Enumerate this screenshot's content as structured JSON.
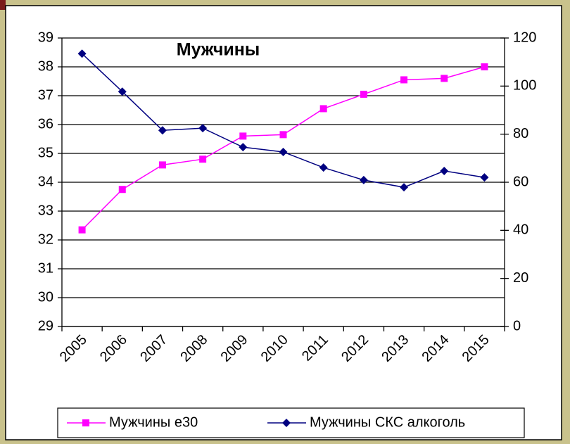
{
  "chart_data": {
    "type": "line",
    "title": "Мужчины",
    "categories": [
      "2005",
      "2006",
      "2007",
      "2008",
      "2009",
      "2010",
      "2011",
      "2012",
      "2013",
      "2014",
      "2015"
    ],
    "series": [
      {
        "name": "Мужчины е30",
        "color": "#ff00ff",
        "marker": "square",
        "values": [
          32.35,
          33.75,
          34.6,
          34.8,
          35.6,
          35.65,
          36.55,
          37.05,
          37.55,
          37.6,
          38.0
        ]
      },
      {
        "name": "Мужчины СКС алкоголь",
        "color": "#000080",
        "marker": "diamond",
        "axis": "y2",
        "values": [
          113.5,
          97.7,
          81.6,
          82.5,
          74.6,
          72.6,
          66.1,
          60.9,
          57.9,
          64.7,
          62.0
        ]
      }
    ],
    "ylim": [
      29,
      39
    ],
    "yticks": [
      29,
      30,
      31,
      32,
      33,
      34,
      35,
      36,
      37,
      38,
      39
    ],
    "y2lim": [
      0,
      120
    ],
    "y2ticks": [
      0,
      20,
      40,
      60,
      80,
      100,
      120
    ],
    "grid": true,
    "legend": "bottom"
  }
}
